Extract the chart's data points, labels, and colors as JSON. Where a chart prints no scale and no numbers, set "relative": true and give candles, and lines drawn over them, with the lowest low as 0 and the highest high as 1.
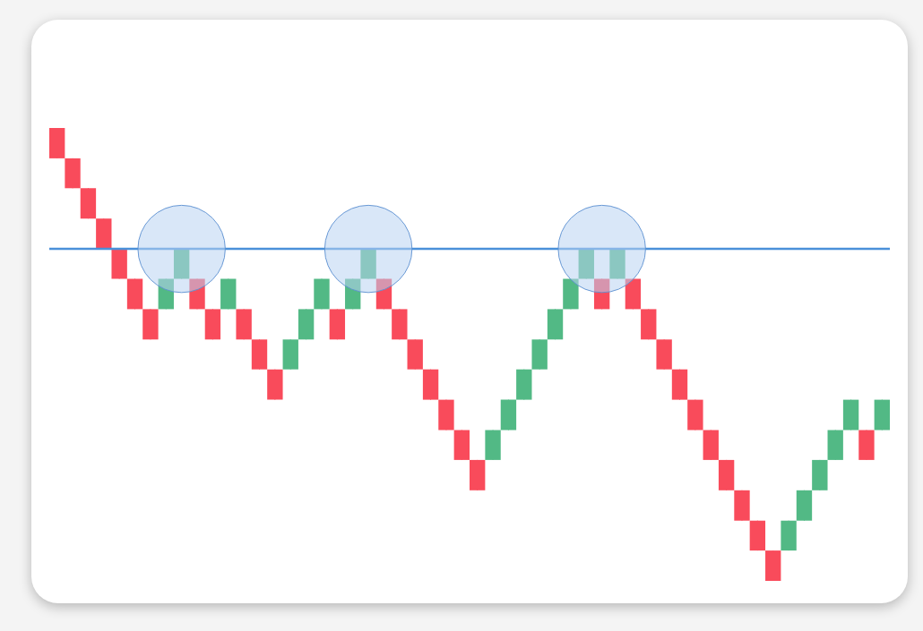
{
  "chart_data": {
    "type": "candlestick",
    "relative": true,
    "categories": [
      null,
      null,
      null,
      null,
      null,
      null,
      null,
      null,
      null,
      null,
      null,
      null,
      null,
      null,
      null,
      null,
      null,
      null,
      null,
      null,
      null,
      null,
      null,
      null,
      null,
      null,
      null,
      null,
      null,
      null,
      null,
      null,
      null,
      null,
      null,
      null,
      null,
      null,
      null,
      null,
      null,
      null,
      null,
      null,
      null,
      null,
      null,
      null,
      null,
      null,
      null,
      null,
      null,
      null
    ],
    "ohlc": [
      [
        1,
        1,
        0.933,
        0.933
      ],
      [
        0.933,
        0.933,
        0.867,
        0.867
      ],
      [
        0.867,
        0.867,
        0.8,
        0.8
      ],
      [
        0.8,
        0.8,
        0.733,
        0.733
      ],
      [
        0.733,
        0.733,
        0.667,
        0.667
      ],
      [
        0.667,
        0.667,
        0.6,
        0.6
      ],
      [
        0.6,
        0.6,
        0.533,
        0.533
      ],
      [
        0.6,
        0.667,
        0.6,
        0.667
      ],
      [
        0.667,
        0.733,
        0.667,
        0.733
      ],
      [
        0.667,
        0.667,
        0.6,
        0.6
      ],
      [
        0.6,
        0.6,
        0.533,
        0.533
      ],
      [
        0.6,
        0.667,
        0.6,
        0.667
      ],
      [
        0.6,
        0.6,
        0.533,
        0.533
      ],
      [
        0.533,
        0.533,
        0.467,
        0.467
      ],
      [
        0.467,
        0.467,
        0.4,
        0.4
      ],
      [
        0.467,
        0.533,
        0.467,
        0.533
      ],
      [
        0.533,
        0.6,
        0.533,
        0.6
      ],
      [
        0.6,
        0.667,
        0.6,
        0.667
      ],
      [
        0.6,
        0.6,
        0.533,
        0.533
      ],
      [
        0.6,
        0.667,
        0.6,
        0.667
      ],
      [
        0.667,
        0.733,
        0.667,
        0.733
      ],
      [
        0.667,
        0.667,
        0.6,
        0.6
      ],
      [
        0.6,
        0.6,
        0.533,
        0.533
      ],
      [
        0.533,
        0.533,
        0.467,
        0.467
      ],
      [
        0.467,
        0.467,
        0.4,
        0.4
      ],
      [
        0.4,
        0.4,
        0.333,
        0.333
      ],
      [
        0.333,
        0.333,
        0.267,
        0.267
      ],
      [
        0.267,
        0.267,
        0.2,
        0.2
      ],
      [
        0.267,
        0.333,
        0.267,
        0.333
      ],
      [
        0.333,
        0.4,
        0.333,
        0.4
      ],
      [
        0.4,
        0.467,
        0.4,
        0.467
      ],
      [
        0.467,
        0.533,
        0.467,
        0.533
      ],
      [
        0.533,
        0.6,
        0.533,
        0.6
      ],
      [
        0.6,
        0.667,
        0.6,
        0.667
      ],
      [
        0.667,
        0.733,
        0.667,
        0.733
      ],
      [
        0.667,
        0.667,
        0.6,
        0.6
      ],
      [
        0.667,
        0.733,
        0.667,
        0.733
      ],
      [
        0.667,
        0.667,
        0.6,
        0.6
      ],
      [
        0.6,
        0.6,
        0.533,
        0.533
      ],
      [
        0.533,
        0.533,
        0.467,
        0.467
      ],
      [
        0.467,
        0.467,
        0.4,
        0.4
      ],
      [
        0.4,
        0.4,
        0.333,
        0.333
      ],
      [
        0.333,
        0.333,
        0.267,
        0.267
      ],
      [
        0.267,
        0.267,
        0.2,
        0.2
      ],
      [
        0.2,
        0.2,
        0.133,
        0.133
      ],
      [
        0.133,
        0.133,
        0.067,
        0.067
      ],
      [
        0.067,
        0.067,
        0,
        0
      ],
      [
        0.067,
        0.133,
        0.067,
        0.133
      ],
      [
        0.133,
        0.2,
        0.133,
        0.2
      ],
      [
        0.2,
        0.267,
        0.2,
        0.267
      ],
      [
        0.267,
        0.333,
        0.267,
        0.333
      ],
      [
        0.333,
        0.4,
        0.333,
        0.4
      ],
      [
        0.333,
        0.333,
        0.267,
        0.267
      ],
      [
        0.333,
        0.4,
        0.333,
        0.4
      ]
    ],
    "colors": [
      "#f94b5b",
      "#f94b5b",
      "#f94b5b",
      "#f94b5b",
      "#f94b5b",
      "#f94b5b",
      "#f94b5b",
      "#52b985",
      "#52b985",
      "#f94b5b",
      "#f94b5b",
      "#52b985",
      "#f94b5b",
      "#f94b5b",
      "#f94b5b",
      "#52b985",
      "#52b985",
      "#52b985",
      "#f94b5b",
      "#52b985",
      "#52b985",
      "#f94b5b",
      "#f94b5b",
      "#f94b5b",
      "#f94b5b",
      "#f94b5b",
      "#f94b5b",
      "#f94b5b",
      "#52b985",
      "#52b985",
      "#52b985",
      "#52b985",
      "#52b985",
      "#52b985",
      "#52b985",
      "#f94b5b",
      "#52b985",
      "#f94b5b",
      "#f94b5b",
      "#f94b5b",
      "#f94b5b",
      "#f94b5b",
      "#f94b5b",
      "#f94b5b",
      "#f94b5b",
      "#f94b5b",
      "#f94b5b",
      "#52b985",
      "#52b985",
      "#52b985",
      "#52b985",
      "#52b985",
      "#f94b5b",
      "#52b985"
    ],
    "ref_lines": [
      {
        "axis": "y",
        "value": 0.733,
        "color": "#4a90d9"
      }
    ]
  }
}
